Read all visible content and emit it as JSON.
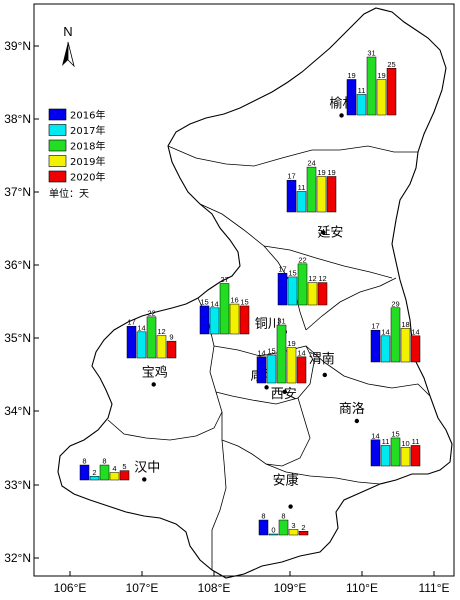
{
  "chart_data": {
    "type": "bar",
    "unit_label": "单位：天",
    "north_label": "N",
    "x_ticks": [
      "106°E",
      "107°E",
      "108°E",
      "109°E",
      "110°E",
      "111°E"
    ],
    "y_ticks": [
      "39°N",
      "38°N",
      "37°N",
      "36°N",
      "35°N",
      "34°N",
      "33°N",
      "32°N"
    ],
    "xlim": [
      105.5,
      111.4
    ],
    "ylim": [
      31.65,
      39.55
    ],
    "series": [
      {
        "name": "2016年",
        "color": "#0000ee"
      },
      {
        "name": "2017年",
        "color": "#00e8f0"
      },
      {
        "name": "2018年",
        "color": "#22dd22"
      },
      {
        "name": "2019年",
        "color": "#f2f200"
      },
      {
        "name": "2020年",
        "color": "#ee0000"
      }
    ],
    "cities": [
      {
        "name": "榆林",
        "lon": 109.73,
        "lat": 38.05,
        "bar_x": 347,
        "bar_base": 115,
        "values": [
          19,
          11,
          31,
          19,
          25
        ]
      },
      {
        "name": "延安",
        "lon": 109.48,
        "lat": 36.45,
        "bar_x": 287,
        "bar_base": 212,
        "values": [
          17,
          11,
          24,
          19,
          19
        ]
      },
      {
        "name": "铜川",
        "lon": 108.95,
        "lat": 35.09,
        "bar_x": 278,
        "bar_base": 305,
        "values": [
          17,
          15,
          22,
          12,
          12
        ]
      },
      {
        "name": "咸阳",
        "lon": 108.7,
        "lat": 34.33,
        "bar_x": 200,
        "bar_base": 334,
        "values": [
          15,
          14,
          27,
          16,
          15
        ]
      },
      {
        "name": "渭南",
        "lon": 109.5,
        "lat": 34.5,
        "bar_x": 371,
        "bar_base": 362,
        "values": [
          17,
          14,
          29,
          18,
          14
        ]
      },
      {
        "name": "宝鸡",
        "lon": 107.15,
        "lat": 34.37,
        "bar_x": 127,
        "bar_base": 358,
        "values": [
          17,
          14,
          22,
          12,
          9
        ]
      },
      {
        "name": "西安",
        "lon": 108.95,
        "lat": 34.27,
        "bar_x": 257,
        "bar_base": 383,
        "values": [
          14,
          15,
          31,
          19,
          14
        ]
      },
      {
        "name": "商洛",
        "lon": 109.94,
        "lat": 33.87,
        "bar_x": 371,
        "bar_base": 466,
        "values": [
          14,
          11,
          15,
          10,
          11
        ]
      },
      {
        "name": "汉中",
        "lon": 107.02,
        "lat": 33.07,
        "bar_x": 80,
        "bar_base": 480,
        "values": [
          8,
          2,
          8,
          4,
          5
        ]
      },
      {
        "name": "安康",
        "lon": 109.03,
        "lat": 32.7,
        "bar_x": 259,
        "bar_base": 535,
        "values": [
          8,
          0,
          8,
          3,
          2
        ]
      }
    ]
  }
}
